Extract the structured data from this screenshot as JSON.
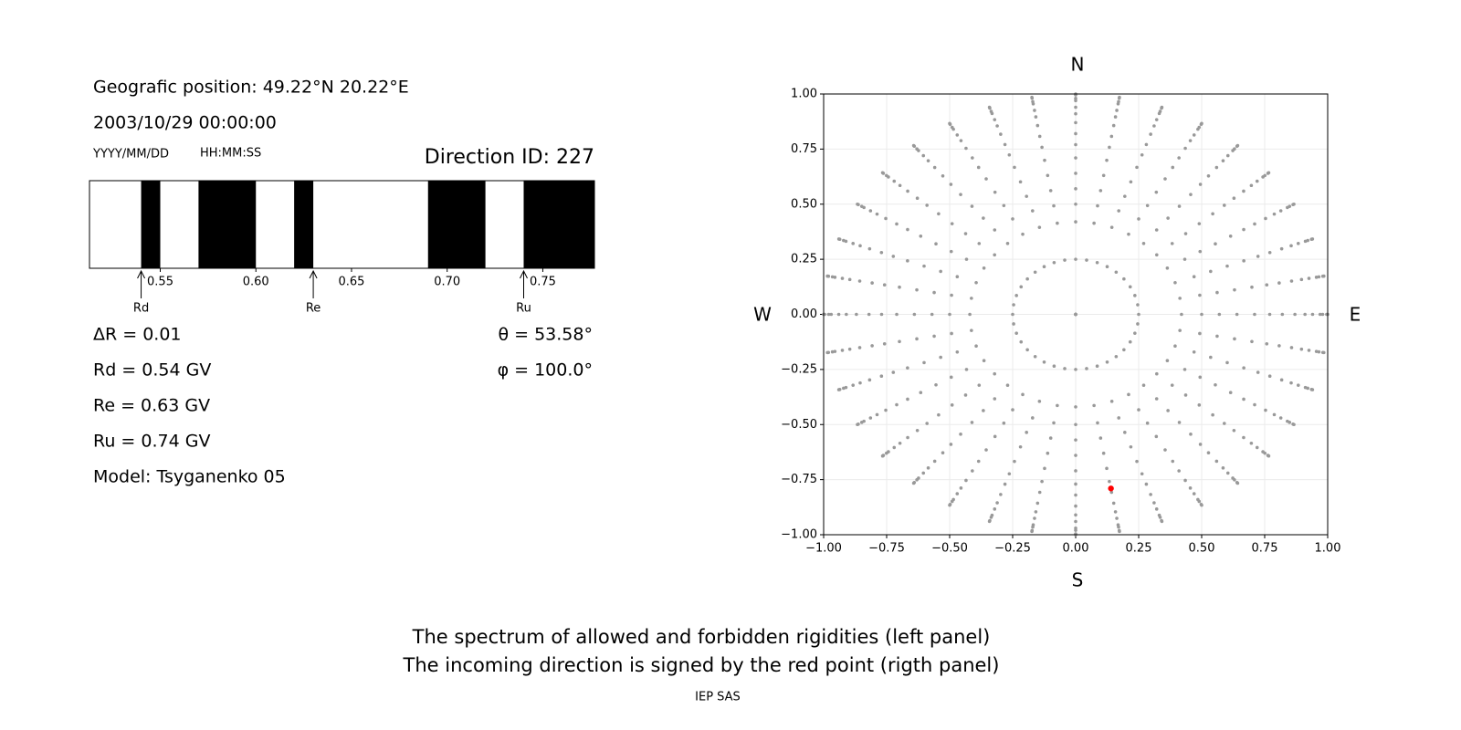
{
  "info": {
    "position": "Geografic position: 49.22°N 20.22°E",
    "datetime": "2003/10/29 00:00:00",
    "date_format": "YYYY/MM/DD",
    "time_format": "HH:MM:SS",
    "direction": "Direction ID: 227",
    "params": [
      "ΔR = 0.01",
      "Rd = 0.54 GV",
      "Re = 0.63 GV",
      "Ru = 0.74 GV",
      "Model: Tsyganenko 05"
    ],
    "angles": [
      "θ = 53.58°",
      "φ = 100.0°"
    ]
  },
  "chart_data": [
    {
      "type": "spectrum",
      "xlim": [
        0.513,
        0.777
      ],
      "xticks": [
        0.55,
        {
          "value": 0.6,
          "label": "0.60"
        },
        0.65,
        {
          "value": 0.7,
          "label": "0.70"
        },
        0.75
      ],
      "forbidden": [
        [
          0.54,
          0.55
        ],
        [
          0.57,
          0.6
        ],
        [
          0.62,
          0.63
        ],
        [
          0.69,
          0.72
        ],
        [
          0.74,
          0.777
        ]
      ],
      "color": "#000000",
      "markers": [
        {
          "label": "Rd",
          "value": 0.54
        },
        {
          "label": "Re",
          "value": 0.63
        },
        {
          "label": "Ru",
          "value": 0.74
        }
      ]
    },
    {
      "type": "polar-grid",
      "directions": {
        "north": "N",
        "south": "S",
        "west": "W",
        "east": "E"
      },
      "xlim": [
        -1,
        1
      ],
      "ylim": [
        -1,
        1
      ],
      "xticks": [
        {
          "value": -1,
          "label": "−1.00"
        },
        {
          "value": -0.75,
          "label": "−0.75"
        },
        {
          "value": -0.5,
          "label": "−0.50"
        },
        {
          "value": -0.25,
          "label": "−0.25"
        },
        {
          "value": 0,
          "label": "0.00"
        },
        {
          "value": 0.25,
          "label": "0.25"
        },
        {
          "value": 0.5,
          "label": "0.50"
        },
        {
          "value": 0.75,
          "label": "0.75"
        },
        {
          "value": 1,
          "label": "1.00"
        }
      ],
      "yticks": [
        {
          "value": -1,
          "label": "−1.00"
        },
        {
          "value": -0.75,
          "label": "−0.75"
        },
        {
          "value": -0.5,
          "label": "−0.50"
        },
        {
          "value": -0.25,
          "label": "−0.25"
        },
        {
          "value": 0,
          "label": "0.00"
        },
        {
          "value": 0.25,
          "label": "0.25"
        },
        {
          "value": 0.5,
          "label": "0.50"
        },
        {
          "value": 0.75,
          "label": "0.75"
        },
        {
          "value": 1,
          "label": "1.00"
        }
      ],
      "grid": true,
      "radii": [
        0,
        0.25,
        0.42,
        0.5,
        0.57,
        0.64,
        0.71,
        0.77,
        0.82,
        0.87,
        0.91,
        0.94,
        0.97,
        0.98,
        0.996,
        1
      ],
      "azimuths": [
        0,
        10,
        20,
        30,
        40,
        50,
        60,
        70,
        80,
        90,
        100,
        110,
        120,
        130,
        140,
        150,
        160,
        170,
        180,
        190,
        200,
        210,
        220,
        230,
        240,
        250,
        260,
        270,
        280,
        290,
        300,
        310,
        320,
        330,
        340,
        350
      ],
      "color": "#999999",
      "highlight": {
        "x": 0.14,
        "y": -0.79,
        "color": "#ff0000"
      }
    }
  ],
  "caption": [
    "The spectrum of allowed and forbidden rigidities (left panel)",
    "The incoming direction is signed by the red point (rigth panel)"
  ],
  "footer": "IEP SAS"
}
